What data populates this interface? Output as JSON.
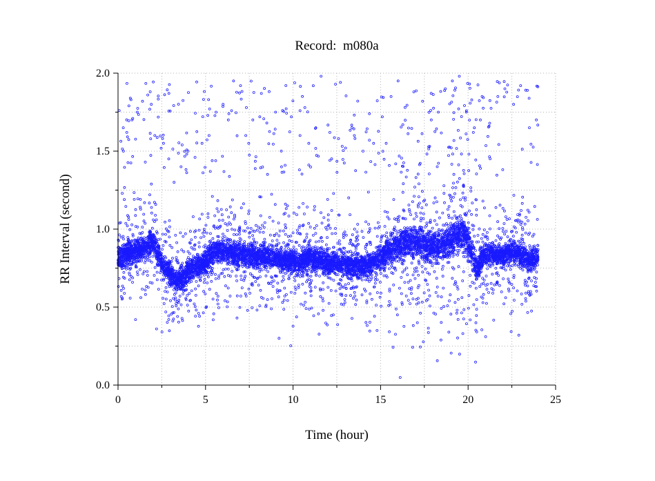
{
  "chart_data": {
    "type": "scatter",
    "title": "Record:  m080a",
    "xlabel": "Time (hour)",
    "ylabel": "RR Interval (second)",
    "xlim": [
      0,
      25
    ],
    "ylim": [
      0.0,
      2.0
    ],
    "xticks": [
      "0",
      "5",
      "10",
      "15",
      "20",
      "25"
    ],
    "yticks": [
      "0.0",
      "0.5",
      "1.0",
      "1.5",
      "2.0"
    ],
    "grid": true,
    "marker": "open-circle",
    "point_color": "#1a1aff",
    "x_range_data": [
      0,
      24
    ],
    "trend": {
      "x": [
        0,
        0.5,
        1,
        1.5,
        2,
        2.5,
        3,
        3.3,
        3.6,
        4,
        4.5,
        5,
        5.3,
        5.6,
        6,
        6.5,
        7,
        7.5,
        8,
        8.5,
        9,
        9.5,
        10,
        10.5,
        11,
        11.5,
        12,
        12.5,
        13,
        13.5,
        14,
        14.5,
        15,
        15.5,
        16,
        16.5,
        17,
        17.5,
        18,
        18.5,
        19,
        19.5,
        19.8,
        20.2,
        20.5,
        21,
        21.5,
        22,
        22.5,
        23,
        23.5,
        24
      ],
      "y": [
        0.82,
        0.84,
        0.86,
        0.88,
        0.92,
        0.78,
        0.71,
        0.66,
        0.68,
        0.73,
        0.76,
        0.78,
        0.84,
        0.87,
        0.86,
        0.85,
        0.84,
        0.84,
        0.82,
        0.83,
        0.82,
        0.8,
        0.79,
        0.8,
        0.82,
        0.8,
        0.78,
        0.78,
        0.77,
        0.77,
        0.76,
        0.78,
        0.82,
        0.86,
        0.9,
        0.92,
        0.91,
        0.9,
        0.89,
        0.9,
        0.93,
        0.96,
        0.97,
        0.85,
        0.74,
        0.85,
        0.84,
        0.83,
        0.86,
        0.84,
        0.8,
        0.82
      ]
    },
    "outliers": {
      "x": [
        0.3,
        0.5,
        0.8,
        1.1,
        1.4,
        1.7,
        1.9,
        2.1,
        2.6,
        2.9,
        3.2,
        3.6,
        4.0,
        4.4,
        4.8,
        5.2,
        5.6,
        6.0,
        6.3,
        6.6,
        7.0,
        7.3,
        7.7,
        8.1,
        8.5,
        9.0,
        9.4,
        9.9,
        10.4,
        10.9,
        11.3,
        11.6,
        12.1,
        12.6,
        13.0,
        13.5,
        14.0,
        14.6,
        15.1,
        15.6,
        16.0,
        16.4,
        16.9,
        17.4,
        17.9,
        18.3,
        18.7,
        19.1,
        19.5,
        19.9,
        20.3,
        20.7,
        21.2,
        21.7,
        22.1,
        22.6,
        23.0,
        23.5,
        23.9,
        1.0,
        2.2,
        3.4,
        4.6,
        6.8,
        9.2,
        12.3,
        14.8,
        17.1,
        19.7,
        21.0,
        22.9
      ],
      "y": [
        1.65,
        1.62,
        1.7,
        1.75,
        1.82,
        1.86,
        1.8,
        1.6,
        1.55,
        1.45,
        1.3,
        1.4,
        1.5,
        1.46,
        1.55,
        1.6,
        1.75,
        1.8,
        1.7,
        1.95,
        1.92,
        1.6,
        1.7,
        1.72,
        1.68,
        1.75,
        1.76,
        1.72,
        1.6,
        1.55,
        1.65,
        1.98,
        1.62,
        1.58,
        1.52,
        1.6,
        1.5,
        1.55,
        1.72,
        1.85,
        1.95,
        1.78,
        1.88,
        1.82,
        1.7,
        1.75,
        1.9,
        1.95,
        1.98,
        1.75,
        1.62,
        1.7,
        1.66,
        1.85,
        1.9,
        1.8,
        1.92,
        1.65,
        1.7,
        0.42,
        0.36,
        0.44,
        0.46,
        0.43,
        0.3,
        0.45,
        0.35,
        0.4,
        0.33,
        0.31,
        0.32
      ]
    }
  }
}
